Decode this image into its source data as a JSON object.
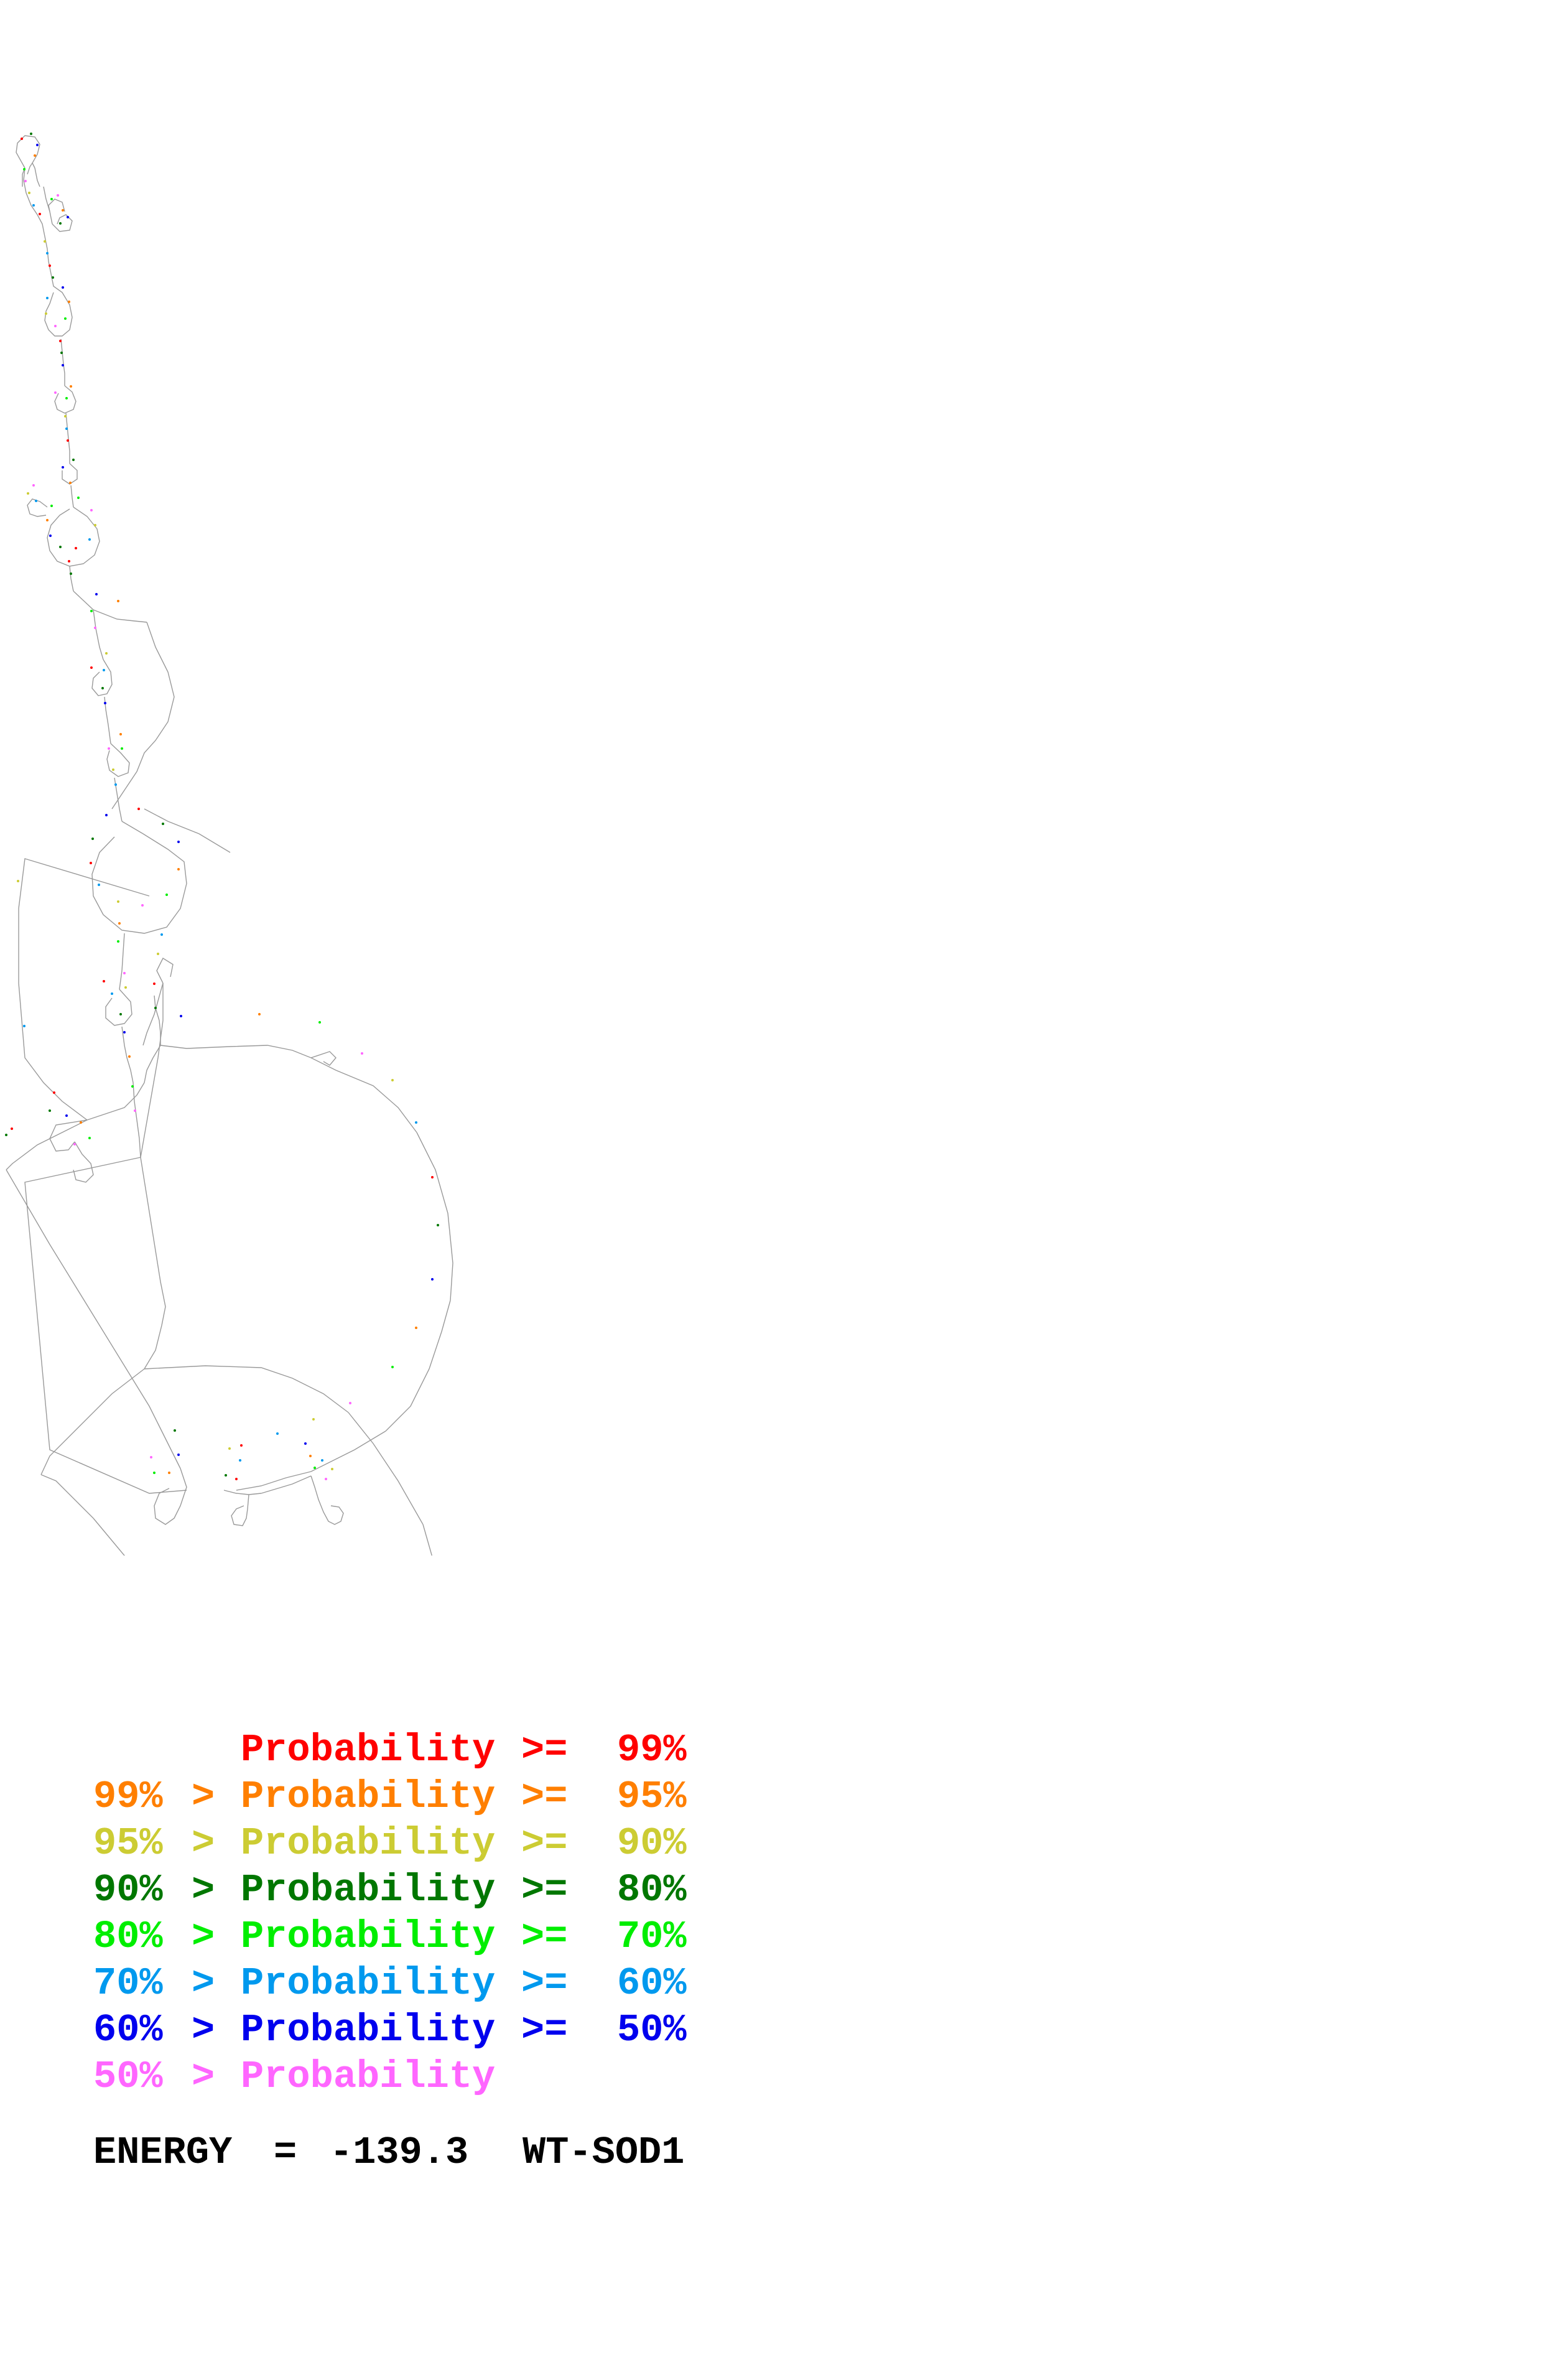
{
  "structure": {
    "backbone_color": "#999999",
    "base_colors": [
      "#ff0000",
      "#ff7f00",
      "#cccc33",
      "#007700",
      "#00ee00",
      "#0099ee",
      "#0000ee",
      "#ff66ff"
    ]
  },
  "legend": {
    "rows": [
      {
        "low": "",
        "gt": "",
        "word": "Probability",
        "ge": ">=",
        "high": "99%",
        "color": "#ff0000"
      },
      {
        "low": "99%",
        "gt": ">",
        "word": "Probability",
        "ge": ">=",
        "high": "95%",
        "color": "#ff7f00"
      },
      {
        "low": "95%",
        "gt": ">",
        "word": "Probability",
        "ge": ">=",
        "high": "90%",
        "color": "#cccc33"
      },
      {
        "low": "90%",
        "gt": ">",
        "word": "Probability",
        "ge": ">=",
        "high": "80%",
        "color": "#007700"
      },
      {
        "low": "80%",
        "gt": ">",
        "word": "Probability",
        "ge": ">=",
        "high": "70%",
        "color": "#00ee00"
      },
      {
        "low": "70%",
        "gt": ">",
        "word": "Probability",
        "ge": ">=",
        "high": "60%",
        "color": "#0099ee"
      },
      {
        "low": "60%",
        "gt": ">",
        "word": "Probability",
        "ge": ">=",
        "high": "50%",
        "color": "#0000ee"
      },
      {
        "low": "50%",
        "gt": ">",
        "word": "Probability",
        "ge": "",
        "high": "",
        "color": "#ff66ff"
      }
    ]
  },
  "footer": {
    "energy_label": "ENERGY",
    "equals": "=",
    "energy_value": "-139.3",
    "sample_name": "WT-SOD1"
  }
}
